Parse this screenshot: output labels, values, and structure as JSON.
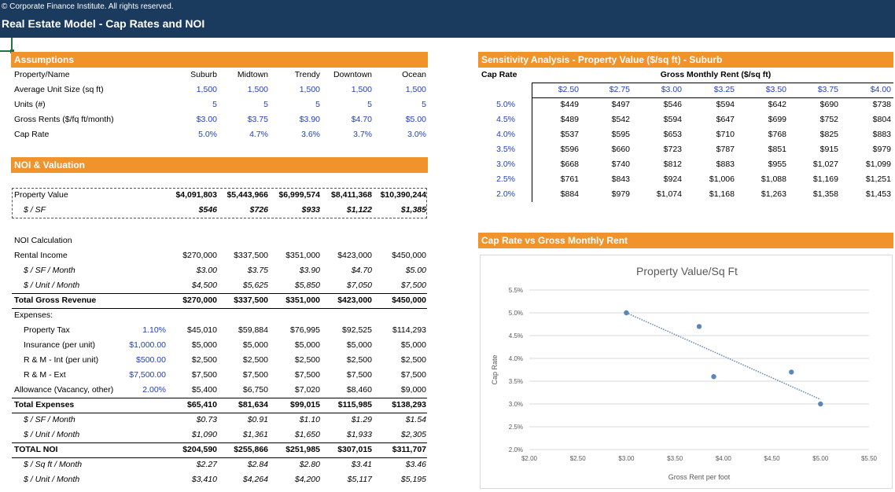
{
  "header": {
    "copyright": "© Corporate Finance Institute. All rights reserved.",
    "title": "Real Estate Model - Cap Rates and NOI"
  },
  "assumptions": {
    "section_title": "Assumptions",
    "col_label": "Property/Name",
    "columns": [
      "Suburb",
      "Midtown",
      "Trendy",
      "Downtown",
      "Ocean"
    ],
    "rows": [
      {
        "label": "Average Unit Size (sq ft)",
        "values": [
          "1,500",
          "1,500",
          "1,500",
          "1,500",
          "1,500"
        ]
      },
      {
        "label": "Units (#)",
        "values": [
          "5",
          "5",
          "5",
          "5",
          "5"
        ]
      },
      {
        "label": "Gross Rents ($/fq ft/month)",
        "values": [
          "$3.00",
          "$3.75",
          "$3.90",
          "$4.70",
          "$5.00"
        ]
      },
      {
        "label": "Cap Rate",
        "values": [
          "5.0%",
          "4.7%",
          "3.6%",
          "3.7%",
          "3.0%"
        ]
      }
    ]
  },
  "valuation": {
    "section_title": "NOI & Valuation",
    "property_value_label": "Property Value",
    "property_value": [
      "$4,091,803",
      "$5,443,966",
      "$6,999,574",
      "$8,411,368",
      "$10,390,244"
    ],
    "per_sf_label": "$ / SF",
    "per_sf": [
      "$546",
      "$726",
      "$933",
      "$1,122",
      "$1,385"
    ]
  },
  "noi": {
    "heading": "NOI Calculation",
    "rows": [
      {
        "label": "Rental Income",
        "style": "",
        "param": "",
        "values": [
          "$270,000",
          "$337,500",
          "$351,000",
          "$423,000",
          "$450,000"
        ]
      },
      {
        "label": "$ / SF / Month",
        "style": "sub",
        "param": "",
        "values": [
          "$3.00",
          "$3.75",
          "$3.90",
          "$4.70",
          "$5.00"
        ]
      },
      {
        "label": "$ / Unit / Month",
        "style": "sub",
        "param": "",
        "values": [
          "$4,500",
          "$5,625",
          "$5,850",
          "$7,050",
          "$7,500"
        ]
      },
      {
        "label": "Total Gross Revenue",
        "style": "total",
        "param": "",
        "values": [
          "$270,000",
          "$337,500",
          "$351,000",
          "$423,000",
          "$450,000"
        ]
      },
      {
        "label": "Expenses:",
        "style": "head",
        "param": "",
        "values": [
          "",
          "",
          "",
          "",
          ""
        ]
      },
      {
        "label": "Property Tax",
        "style": "ind",
        "param": "1.10%",
        "values": [
          "$45,010",
          "$59,884",
          "$76,995",
          "$92,525",
          "$114,293"
        ]
      },
      {
        "label": "Insurance (per unit)",
        "style": "ind",
        "param": "$1,000.00",
        "values": [
          "$5,000",
          "$5,000",
          "$5,000",
          "$5,000",
          "$5,000"
        ]
      },
      {
        "label": "R & M - Int (per unit)",
        "style": "ind",
        "param": "$500.00",
        "values": [
          "$2,500",
          "$2,500",
          "$2,500",
          "$2,500",
          "$2,500"
        ]
      },
      {
        "label": "R & M - Ext",
        "style": "ind",
        "param": "$7,500.00",
        "values": [
          "$7,500",
          "$7,500",
          "$7,500",
          "$7,500",
          "$7,500"
        ]
      },
      {
        "label": "Allowance (Vacancy, other)",
        "style": "",
        "param": "2.00%",
        "values": [
          "$5,400",
          "$6,750",
          "$7,020",
          "$8,460",
          "$9,000"
        ]
      },
      {
        "label": "Total Expenses",
        "style": "total",
        "param": "",
        "values": [
          "$65,410",
          "$81,634",
          "$99,015",
          "$115,985",
          "$138,293"
        ]
      },
      {
        "label": "$ / SF / Month",
        "style": "sub",
        "param": "",
        "values": [
          "$0.73",
          "$0.91",
          "$1.10",
          "$1.29",
          "$1.54"
        ]
      },
      {
        "label": "$ / Unit / Month",
        "style": "sub",
        "param": "",
        "values": [
          "$1,090",
          "$1,361",
          "$1,650",
          "$1,933",
          "$2,305"
        ]
      },
      {
        "label": "TOTAL NOI",
        "style": "total",
        "param": "",
        "values": [
          "$204,590",
          "$255,866",
          "$251,985",
          "$307,015",
          "$311,707"
        ]
      },
      {
        "label": "$ / Sq ft / Month",
        "style": "sub",
        "param": "",
        "values": [
          "$2.27",
          "$2.84",
          "$2.80",
          "$3.41",
          "$3.46"
        ]
      },
      {
        "label": "$ / Unit / Month",
        "style": "sub",
        "param": "",
        "values": [
          "$3,410",
          "$4,264",
          "$4,200",
          "$5,117",
          "$5,195"
        ]
      }
    ]
  },
  "sensitivity": {
    "section_title": "Sensitivity Analysis - Property Value ($/sq ft) - Suburb",
    "row_header": "Cap Rate",
    "col_header": "Gross Monthly Rent ($/sq ft)",
    "rents": [
      "$2.50",
      "$2.75",
      "$3.00",
      "$3.25",
      "$3.50",
      "$3.75",
      "$4.00"
    ],
    "rows": [
      {
        "cap": "5.0%",
        "values": [
          "$449",
          "$497",
          "$546",
          "$594",
          "$642",
          "$690",
          "$738"
        ]
      },
      {
        "cap": "4.5%",
        "values": [
          "$489",
          "$542",
          "$594",
          "$647",
          "$699",
          "$752",
          "$804"
        ]
      },
      {
        "cap": "4.0%",
        "values": [
          "$537",
          "$595",
          "$653",
          "$710",
          "$768",
          "$825",
          "$883"
        ]
      },
      {
        "cap": "3.5%",
        "values": [
          "$596",
          "$660",
          "$723",
          "$787",
          "$851",
          "$915",
          "$979"
        ]
      },
      {
        "cap": "3.0%",
        "values": [
          "$668",
          "$740",
          "$812",
          "$883",
          "$955",
          "$1,027",
          "$1,099"
        ]
      },
      {
        "cap": "2.5%",
        "values": [
          "$761",
          "$843",
          "$924",
          "$1,006",
          "$1,088",
          "$1,169",
          "$1,251"
        ]
      },
      {
        "cap": "2.0%",
        "values": [
          "$884",
          "$979",
          "$1,074",
          "$1,168",
          "$1,263",
          "$1,358",
          "$1,453"
        ]
      }
    ]
  },
  "chart_section": {
    "section_title": "Cap Rate vs Gross Monthly Rent"
  },
  "chart_data": {
    "type": "scatter",
    "title": "Property Value/Sq Ft",
    "xlabel": "Gross Rent per foot",
    "ylabel": "Cap Rate",
    "xlim": [
      2.0,
      5.5
    ],
    "ylim": [
      2.0,
      5.5
    ],
    "xticks": [
      "$2.00",
      "$2.50",
      "$3.00",
      "$3.50",
      "$4.00",
      "$4.50",
      "$5.00",
      "$5.50"
    ],
    "yticks": [
      "2.0%",
      "2.5%",
      "3.0%",
      "3.5%",
      "4.0%",
      "4.5%",
      "5.0%",
      "5.5%"
    ],
    "points": [
      {
        "x": 3.0,
        "y": 5.0
      },
      {
        "x": 3.75,
        "y": 4.7
      },
      {
        "x": 3.9,
        "y": 3.6
      },
      {
        "x": 4.7,
        "y": 3.7
      },
      {
        "x": 5.0,
        "y": 3.0
      }
    ],
    "trendline": {
      "style": "dotted",
      "x": [
        3.0,
        5.0
      ],
      "y": [
        5.0,
        3.1
      ]
    },
    "grid": "horizontal",
    "legend": "none",
    "point_color": "#5b87b7"
  }
}
